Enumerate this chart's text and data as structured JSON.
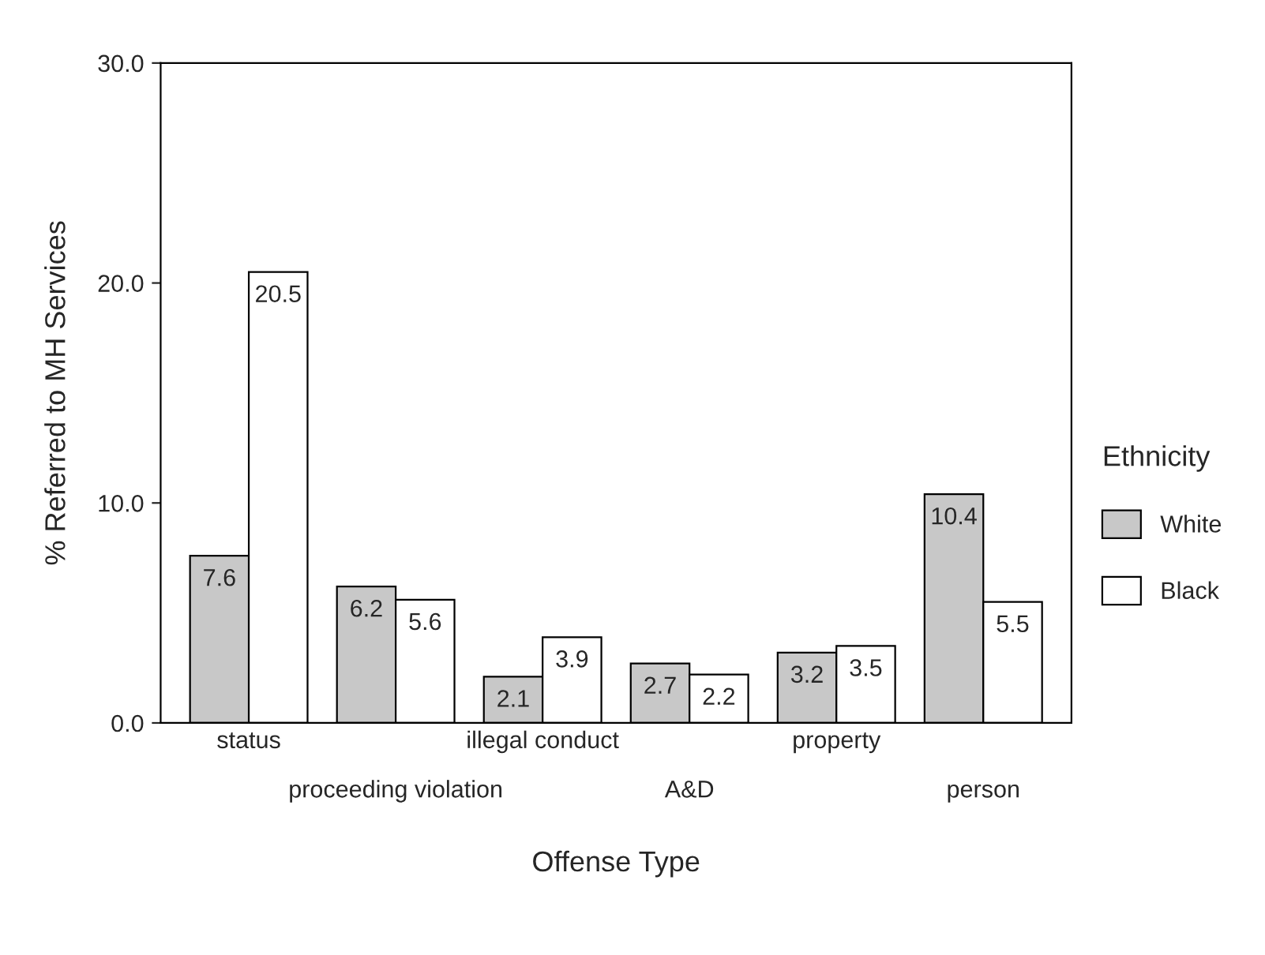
{
  "chart_data": {
    "type": "bar",
    "xlabel": "Offense Type",
    "ylabel": "% Referred to MH Services",
    "legend_title": "Ethnicity",
    "categories": [
      "status",
      "proceeding violation",
      "illegal conduct",
      "A&D",
      "property",
      "person"
    ],
    "series": [
      {
        "name": "White",
        "color": "#c8c8c8",
        "values": [
          7.6,
          6.2,
          2.1,
          2.7,
          3.2,
          10.4
        ]
      },
      {
        "name": "Black",
        "color": "#ffffff",
        "values": [
          20.5,
          5.6,
          3.9,
          2.2,
          3.5,
          5.5
        ]
      }
    ],
    "ylim": [
      0,
      30
    ],
    "yticks": [
      {
        "value": 0,
        "label": "0.0"
      },
      {
        "value": 10,
        "label": "10.0"
      },
      {
        "value": 20,
        "label": "20.0"
      },
      {
        "value": 30,
        "label": "30.0"
      }
    ],
    "data_labels": true,
    "grid": false,
    "legend": "right"
  }
}
